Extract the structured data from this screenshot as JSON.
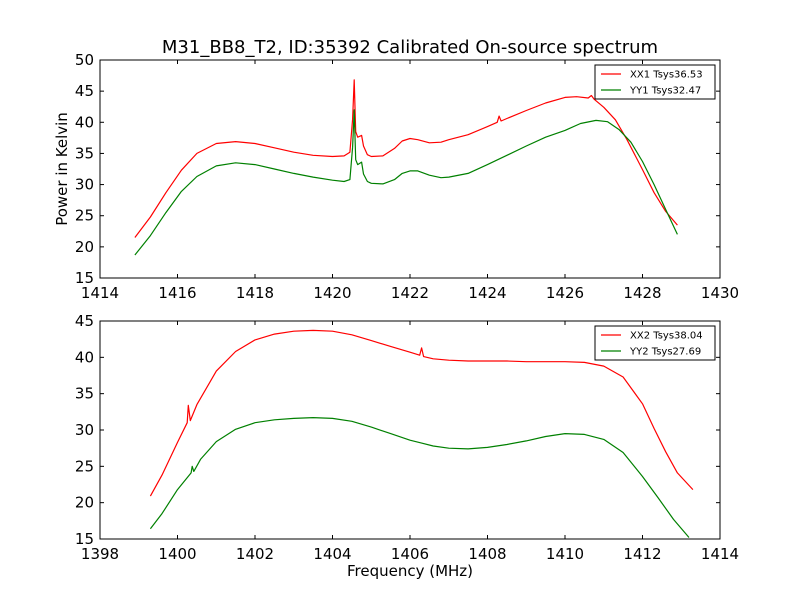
{
  "chart_data": [
    {
      "type": "line",
      "title": "M31_BB8_T2, ID:35392 Calibrated On-source spectrum",
      "xlabel": "",
      "ylabel": "Power in Kelvin",
      "xlim": [
        1414,
        1430
      ],
      "ylim": [
        15,
        50
      ],
      "xticks": [
        1414,
        1416,
        1418,
        1420,
        1422,
        1424,
        1426,
        1428,
        1430
      ],
      "yticks": [
        15,
        20,
        25,
        30,
        35,
        40,
        45,
        50
      ],
      "legend_position": "top-right",
      "series": [
        {
          "name": "XX1 Tsys36.53",
          "color": "#ff0000",
          "x": [
            1414.9,
            1415.3,
            1415.7,
            1416.1,
            1416.5,
            1417.0,
            1417.5,
            1418.0,
            1418.5,
            1419.0,
            1419.5,
            1420.0,
            1420.3,
            1420.45,
            1420.52,
            1420.56,
            1420.6,
            1420.65,
            1420.75,
            1420.8,
            1420.9,
            1421.0,
            1421.3,
            1421.6,
            1421.8,
            1422.0,
            1422.2,
            1422.5,
            1422.8,
            1423.0,
            1423.5,
            1424.0,
            1424.25,
            1424.3,
            1424.35,
            1424.5,
            1425.0,
            1425.5,
            1426.0,
            1426.3,
            1426.6,
            1426.68,
            1426.75,
            1427.0,
            1427.3,
            1427.6,
            1428.0,
            1428.3,
            1428.6,
            1428.9
          ],
          "y": [
            21.5,
            24.8,
            28.7,
            32.3,
            35.0,
            36.6,
            36.9,
            36.6,
            35.9,
            35.2,
            34.7,
            34.5,
            34.6,
            35.2,
            40.5,
            46.8,
            38.5,
            37.6,
            37.9,
            36.2,
            34.8,
            34.5,
            34.6,
            35.8,
            37.0,
            37.4,
            37.2,
            36.7,
            36.8,
            37.2,
            38.0,
            39.3,
            40.0,
            41.0,
            40.2,
            40.6,
            41.9,
            43.1,
            44.0,
            44.1,
            43.9,
            44.3,
            43.7,
            42.4,
            40.4,
            37.2,
            32.4,
            28.7,
            25.7,
            23.5
          ]
        },
        {
          "name": "YY1 Tsys32.47",
          "color": "#008000",
          "x": [
            1414.9,
            1415.3,
            1415.7,
            1416.1,
            1416.5,
            1417.0,
            1417.5,
            1418.0,
            1418.5,
            1419.0,
            1419.5,
            1420.0,
            1420.3,
            1420.45,
            1420.52,
            1420.56,
            1420.6,
            1420.65,
            1420.75,
            1420.8,
            1420.9,
            1421.0,
            1421.3,
            1421.6,
            1421.8,
            1422.0,
            1422.2,
            1422.5,
            1422.8,
            1423.0,
            1423.5,
            1424.0,
            1424.5,
            1425.0,
            1425.5,
            1426.0,
            1426.4,
            1426.8,
            1427.1,
            1427.4,
            1427.7,
            1428.0,
            1428.3,
            1428.6,
            1428.9
          ],
          "y": [
            18.7,
            21.8,
            25.5,
            28.9,
            31.3,
            33.0,
            33.5,
            33.2,
            32.5,
            31.8,
            31.2,
            30.7,
            30.5,
            30.8,
            36.0,
            42.0,
            34.0,
            33.2,
            33.6,
            31.7,
            30.5,
            30.2,
            30.1,
            30.8,
            31.8,
            32.2,
            32.2,
            31.5,
            31.1,
            31.2,
            31.8,
            33.2,
            34.7,
            36.2,
            37.6,
            38.7,
            39.8,
            40.3,
            40.1,
            38.8,
            36.8,
            33.7,
            30.0,
            26.0,
            22.0
          ]
        }
      ]
    },
    {
      "type": "line",
      "title": "",
      "xlabel": "Frequency (MHz)",
      "ylabel": "",
      "xlim": [
        1398,
        1414
      ],
      "ylim": [
        15,
        45
      ],
      "xticks": [
        1398,
        1400,
        1402,
        1404,
        1406,
        1408,
        1410,
        1412,
        1414
      ],
      "yticks": [
        15,
        20,
        25,
        30,
        35,
        40,
        45
      ],
      "legend_position": "top-right",
      "series": [
        {
          "name": "XX2 Tsys38.04",
          "color": "#ff0000",
          "x": [
            1399.3,
            1399.6,
            1400.0,
            1400.25,
            1400.28,
            1400.33,
            1400.5,
            1401.0,
            1401.5,
            1402.0,
            1402.5,
            1403.0,
            1403.5,
            1404.0,
            1404.5,
            1405.0,
            1405.5,
            1406.0,
            1406.25,
            1406.3,
            1406.35,
            1406.6,
            1407.0,
            1407.5,
            1408.0,
            1408.5,
            1409.0,
            1409.5,
            1410.0,
            1410.5,
            1411.0,
            1411.5,
            1412.0,
            1412.3,
            1412.6,
            1412.9,
            1413.3
          ],
          "y": [
            20.9,
            23.8,
            28.3,
            31.0,
            33.4,
            31.3,
            33.5,
            38.1,
            40.8,
            42.4,
            43.2,
            43.6,
            43.7,
            43.6,
            43.1,
            42.3,
            41.5,
            40.7,
            40.3,
            41.3,
            40.1,
            39.8,
            39.6,
            39.5,
            39.5,
            39.5,
            39.4,
            39.4,
            39.4,
            39.3,
            38.8,
            37.3,
            33.6,
            30.2,
            27.0,
            24.1,
            21.8
          ]
        },
        {
          "name": "YY2 Tsys27.69",
          "color": "#008000",
          "x": [
            1399.3,
            1399.6,
            1400.0,
            1400.35,
            1400.38,
            1400.42,
            1400.6,
            1401.0,
            1401.5,
            1402.0,
            1402.5,
            1403.0,
            1403.5,
            1404.0,
            1404.5,
            1405.0,
            1405.5,
            1406.0,
            1406.3,
            1406.6,
            1407.0,
            1407.5,
            1408.0,
            1408.5,
            1409.0,
            1409.5,
            1410.0,
            1410.5,
            1411.0,
            1411.5,
            1412.0,
            1412.4,
            1412.8,
            1413.2
          ],
          "y": [
            16.4,
            18.5,
            21.8,
            24.1,
            25.0,
            24.3,
            26.0,
            28.4,
            30.1,
            31.0,
            31.4,
            31.6,
            31.7,
            31.6,
            31.2,
            30.4,
            29.5,
            28.6,
            28.2,
            27.8,
            27.5,
            27.4,
            27.6,
            28.0,
            28.5,
            29.1,
            29.5,
            29.4,
            28.7,
            26.9,
            23.6,
            20.7,
            17.7,
            15.2
          ]
        }
      ]
    }
  ]
}
